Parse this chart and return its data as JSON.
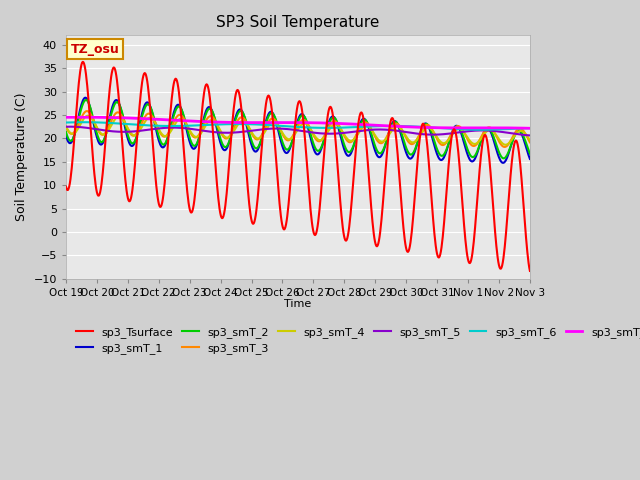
{
  "title": "SP3 Soil Temperature",
  "ylabel": "Soil Temperature (C)",
  "xlabel": "Time",
  "n_days": 15,
  "ylim": [
    -10,
    42
  ],
  "yticks": [
    -10,
    -5,
    0,
    5,
    10,
    15,
    20,
    25,
    30,
    35,
    40
  ],
  "xtick_labels": [
    "Oct 19",
    "Oct 20",
    "Oct 21",
    "Oct 22",
    "Oct 23",
    "Oct 24",
    "Oct 25",
    "Oct 26",
    "Oct 27",
    "Oct 28",
    "Oct 29",
    "Oct 30",
    "Oct 31",
    "Nov 1",
    "Nov 2",
    "Nov 3"
  ],
  "bg_color": "#e8e8e8",
  "fig_color": "#d0d0d0",
  "annotation_text": "TZ_osu",
  "annotation_bg": "#ffffcc",
  "annotation_border": "#cc8800",
  "series_colors": {
    "sp3_Tsurface": "#ff0000",
    "sp3_smT_1": "#0000cc",
    "sp3_smT_2": "#00cc00",
    "sp3_smT_3": "#ff8800",
    "sp3_smT_4": "#cccc00",
    "sp3_smT_5": "#8800cc",
    "sp3_smT_6": "#00cccc",
    "sp3_smT_7": "#ff00ff"
  }
}
